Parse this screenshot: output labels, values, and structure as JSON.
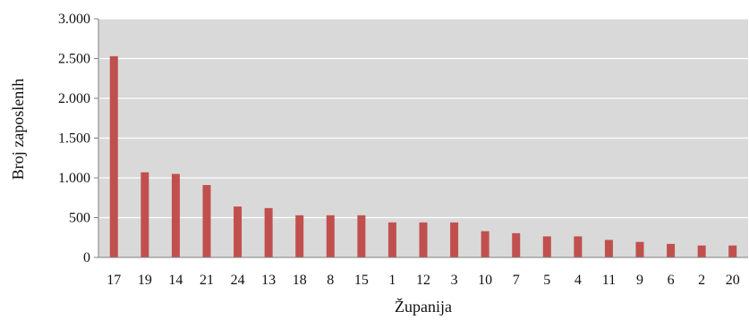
{
  "chart_data": {
    "type": "bar",
    "title": "",
    "xlabel": "Županija",
    "ylabel": "Broj zaposlenih",
    "categories": [
      "17",
      "19",
      "14",
      "21",
      "24",
      "13",
      "18",
      "8",
      "15",
      "1",
      "12",
      "3",
      "10",
      "7",
      "5",
      "4",
      "11",
      "9",
      "6",
      "2",
      "20"
    ],
    "values": [
      2530,
      1070,
      1050,
      910,
      640,
      620,
      530,
      530,
      530,
      440,
      440,
      440,
      330,
      305,
      265,
      265,
      220,
      195,
      170,
      150,
      150
    ],
    "ylim": [
      0,
      3000
    ],
    "yticks": [
      0,
      500,
      1000,
      1500,
      2000,
      2500,
      3000
    ],
    "ytick_labels": [
      "0",
      "500",
      "1.000",
      "1.500",
      "2.000",
      "2.500",
      "3.000"
    ],
    "grid": true,
    "legend": "none",
    "colors": {
      "bar": "#c0504d",
      "plot_background": "#d9d9d9",
      "gridline": "#ffffff",
      "axis": "#808080"
    }
  }
}
